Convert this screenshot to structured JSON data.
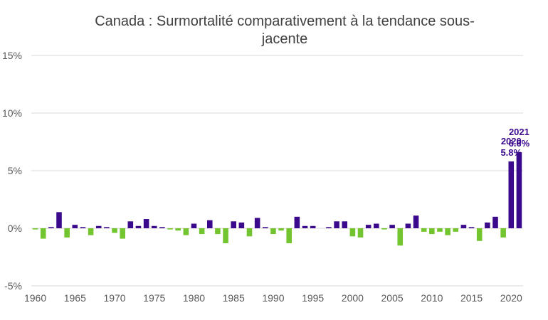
{
  "chart_data": {
    "type": "bar",
    "title": "Canada : Surmortalité comparativement à la tendance sous-jacente",
    "xlabel": "",
    "ylabel": "",
    "ylim": [
      -5,
      15
    ],
    "yticks": [
      "-5%",
      "0%",
      "5%",
      "10%",
      "15%"
    ],
    "ytick_values": [
      -5,
      0,
      5,
      10,
      15
    ],
    "xticks": [
      1960,
      1965,
      1970,
      1975,
      1980,
      1985,
      1990,
      1995,
      2000,
      2005,
      2010,
      2015,
      2020
    ],
    "grid": true,
    "colors": {
      "positive": "#3b0a8c",
      "negative": "#72c52e",
      "grid": "#d9d9d9",
      "annotation": "#3b0a8c"
    },
    "x": [
      1960,
      1961,
      1962,
      1963,
      1964,
      1965,
      1966,
      1967,
      1968,
      1969,
      1970,
      1971,
      1972,
      1973,
      1974,
      1975,
      1976,
      1977,
      1978,
      1979,
      1980,
      1981,
      1982,
      1983,
      1984,
      1985,
      1986,
      1987,
      1988,
      1989,
      1990,
      1991,
      1992,
      1993,
      1994,
      1995,
      1996,
      1997,
      1998,
      1999,
      2000,
      2001,
      2002,
      2003,
      2004,
      2005,
      2006,
      2007,
      2008,
      2009,
      2010,
      2011,
      2012,
      2013,
      2014,
      2015,
      2016,
      2017,
      2018,
      2019,
      2020,
      2021
    ],
    "values": [
      -0.1,
      -0.9,
      0.1,
      1.4,
      -0.8,
      0.3,
      0.1,
      -0.6,
      0.2,
      0.1,
      -0.4,
      -0.9,
      0.6,
      0.2,
      0.8,
      0.2,
      0.1,
      -0.1,
      -0.2,
      -0.6,
      0.4,
      -0.5,
      0.7,
      -0.5,
      -1.3,
      0.6,
      0.5,
      -0.7,
      0.9,
      0.1,
      -0.5,
      -0.2,
      -1.3,
      1.0,
      0.2,
      0.2,
      0.0,
      0.1,
      0.6,
      0.6,
      -0.7,
      -0.8,
      0.3,
      0.4,
      -0.1,
      0.3,
      -1.5,
      0.4,
      1.1,
      -0.3,
      -0.5,
      -0.3,
      -0.6,
      -0.3,
      0.3,
      0.1,
      -1.1,
      0.5,
      1.0,
      -0.8,
      5.8,
      6.6
    ],
    "annotations": [
      {
        "year": "2020",
        "value": "5.8%"
      },
      {
        "year": "2021",
        "value": "6.6%"
      }
    ]
  }
}
